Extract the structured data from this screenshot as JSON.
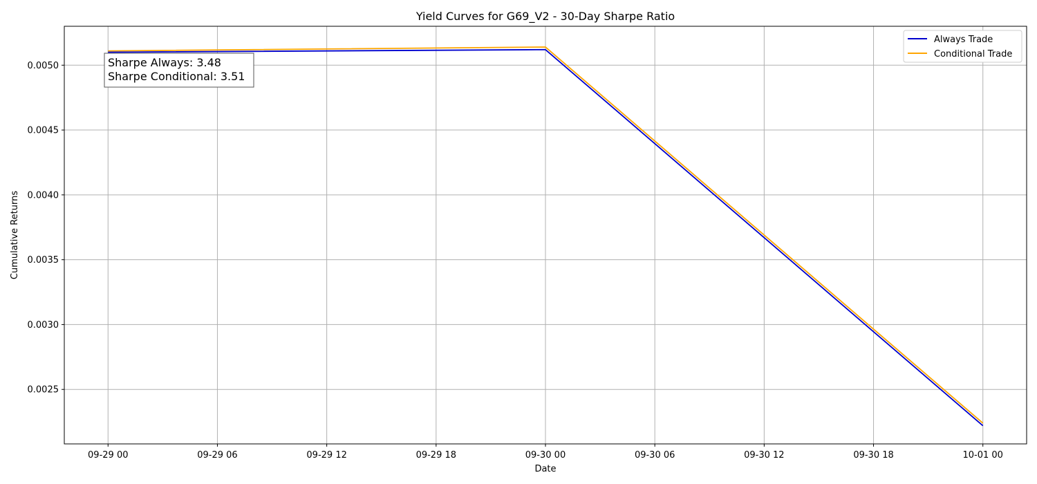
{
  "chart_data": {
    "type": "line",
    "title": "Yield Curves for G69_V2 - 30-Day Sharpe Ratio",
    "xlabel": "Date",
    "ylabel": "Cumulative Returns",
    "xlim": [
      "09-28 21:36",
      "10-01 02:24"
    ],
    "ylim": [
      0.00208,
      0.0053
    ],
    "x_ticks": [
      "09-29 00",
      "09-29 06",
      "09-29 12",
      "09-29 18",
      "09-30 00",
      "09-30 06",
      "09-30 12",
      "09-30 18",
      "10-01 00"
    ],
    "y_ticks": [
      0.0025,
      0.003,
      0.0035,
      0.004,
      0.0045,
      0.005
    ],
    "y_tick_labels": [
      "0.0025",
      "0.0030",
      "0.0035",
      "0.0040",
      "0.0045",
      "0.0050"
    ],
    "grid": true,
    "legend_position": "top-right",
    "series": [
      {
        "name": "Always Trade",
        "color": "#0000cd",
        "x": [
          "09-29 00",
          "09-30 00",
          "10-01 00"
        ],
        "values": [
          0.0051,
          0.00512,
          0.00222
        ]
      },
      {
        "name": "Conditional Trade",
        "color": "#ffa500",
        "x": [
          "09-29 00",
          "09-30 00",
          "10-01 00"
        ],
        "values": [
          0.00511,
          0.00514,
          0.00224
        ]
      }
    ],
    "annotation": {
      "lines": [
        "Sharpe Always: 3.48",
        "Sharpe Conditional: 3.51"
      ],
      "position": "top-left"
    }
  }
}
